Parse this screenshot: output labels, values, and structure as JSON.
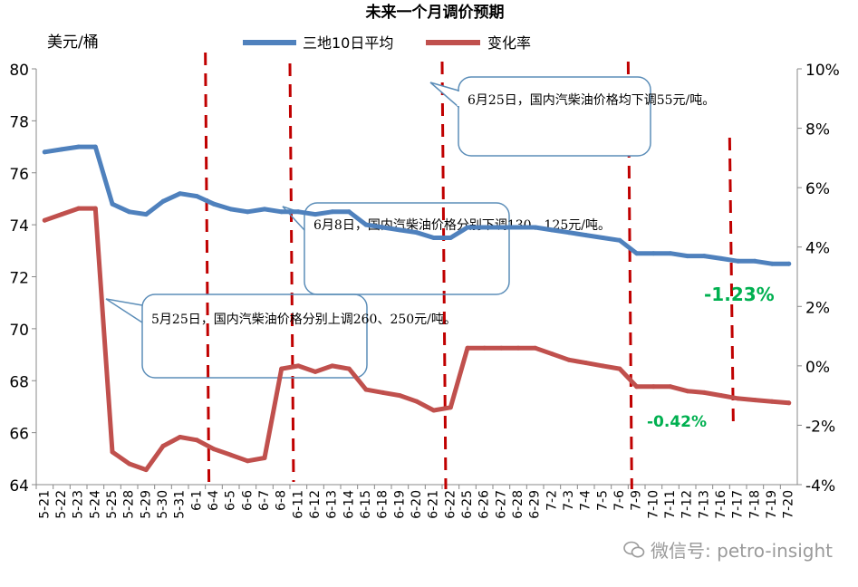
{
  "title": "未来一个月调价预期",
  "left_unit": "美元/桶",
  "watermark": "微信号: petro-insight",
  "colors": {
    "blue": "#4f81bd",
    "red": "#c0504d",
    "dash": "#c00000",
    "green": "#00b050",
    "callout": "#5b8db8",
    "axis": "#888888"
  },
  "chart_data": {
    "type": "line",
    "title": "未来一个月调价预期",
    "ylabel": "美元/桶",
    "ylim": [
      64,
      80
    ],
    "y2lim": [
      -4,
      10
    ],
    "yticks": [
      "64",
      "66",
      "68",
      "70",
      "72",
      "74",
      "76",
      "78",
      "80"
    ],
    "y2ticks": [
      "-4%",
      "-2%",
      "0%",
      "2%",
      "4%",
      "6%",
      "8%",
      "10%"
    ],
    "legend_position": "top",
    "categories": [
      "5-21",
      "5-22",
      "5-23",
      "5-24",
      "5-25",
      "5-28",
      "5-29",
      "5-30",
      "5-31",
      "6-1",
      "6-4",
      "6-5",
      "6-6",
      "6-7",
      "6-8",
      "6-11",
      "6-12",
      "6-13",
      "6-14",
      "6-15",
      "6-18",
      "6-19",
      "6-20",
      "6-21",
      "6-22",
      "6-25",
      "6-26",
      "6-27",
      "6-28",
      "6-29",
      "7-2",
      "7-3",
      "7-4",
      "7-5",
      "7-6",
      "7-9",
      "7-10",
      "7-11",
      "7-12",
      "7-13",
      "7-16",
      "7-17",
      "7-18",
      "7-19",
      "7-20"
    ],
    "series": [
      {
        "name": "三地10日平均",
        "axis": "left",
        "values": [
          76.8,
          76.9,
          77.0,
          77.0,
          74.8,
          74.5,
          74.4,
          74.9,
          75.2,
          75.1,
          74.8,
          74.6,
          74.5,
          74.6,
          74.5,
          74.5,
          74.4,
          74.5,
          74.5,
          74.0,
          73.9,
          73.8,
          73.7,
          73.5,
          73.5,
          73.9,
          73.9,
          73.9,
          73.9,
          73.9,
          73.8,
          73.7,
          73.6,
          73.5,
          73.4,
          72.9,
          72.9,
          72.9,
          72.8,
          72.8,
          72.7,
          72.6,
          72.6,
          72.5,
          72.5
        ]
      },
      {
        "name": "变化率",
        "axis": "right",
        "values": [
          4.9,
          5.1,
          5.3,
          5.3,
          -2.9,
          -3.3,
          -3.5,
          -2.7,
          -2.4,
          -2.5,
          -2.8,
          -3.0,
          -3.2,
          -3.1,
          -0.1,
          0.0,
          -0.2,
          0.0,
          -0.1,
          -0.8,
          -0.9,
          -1.0,
          -1.2,
          -1.5,
          -1.4,
          0.6,
          0.6,
          0.6,
          0.6,
          0.6,
          0.4,
          0.2,
          0.1,
          0.0,
          -0.1,
          -0.7,
          -0.7,
          -0.7,
          -0.85,
          -0.9,
          -1.0,
          -1.1,
          -1.15,
          -1.2,
          -1.25
        ]
      }
    ],
    "dashed_after": [
      "6-1",
      "6-8",
      "6-21",
      "7-6",
      "7-16"
    ],
    "callouts": [
      {
        "text": "6月25日，国内汽柴油价格均下调55元/吨。"
      },
      {
        "text": "6月8日，国内汽柴油价格分别下调130、125元/吨。"
      },
      {
        "text": "5月25日，国内汽柴油价格分别上调260、250元/吨。"
      }
    ],
    "annotations": [
      {
        "text": "-1.23%"
      },
      {
        "text": "-0.42%"
      }
    ]
  }
}
